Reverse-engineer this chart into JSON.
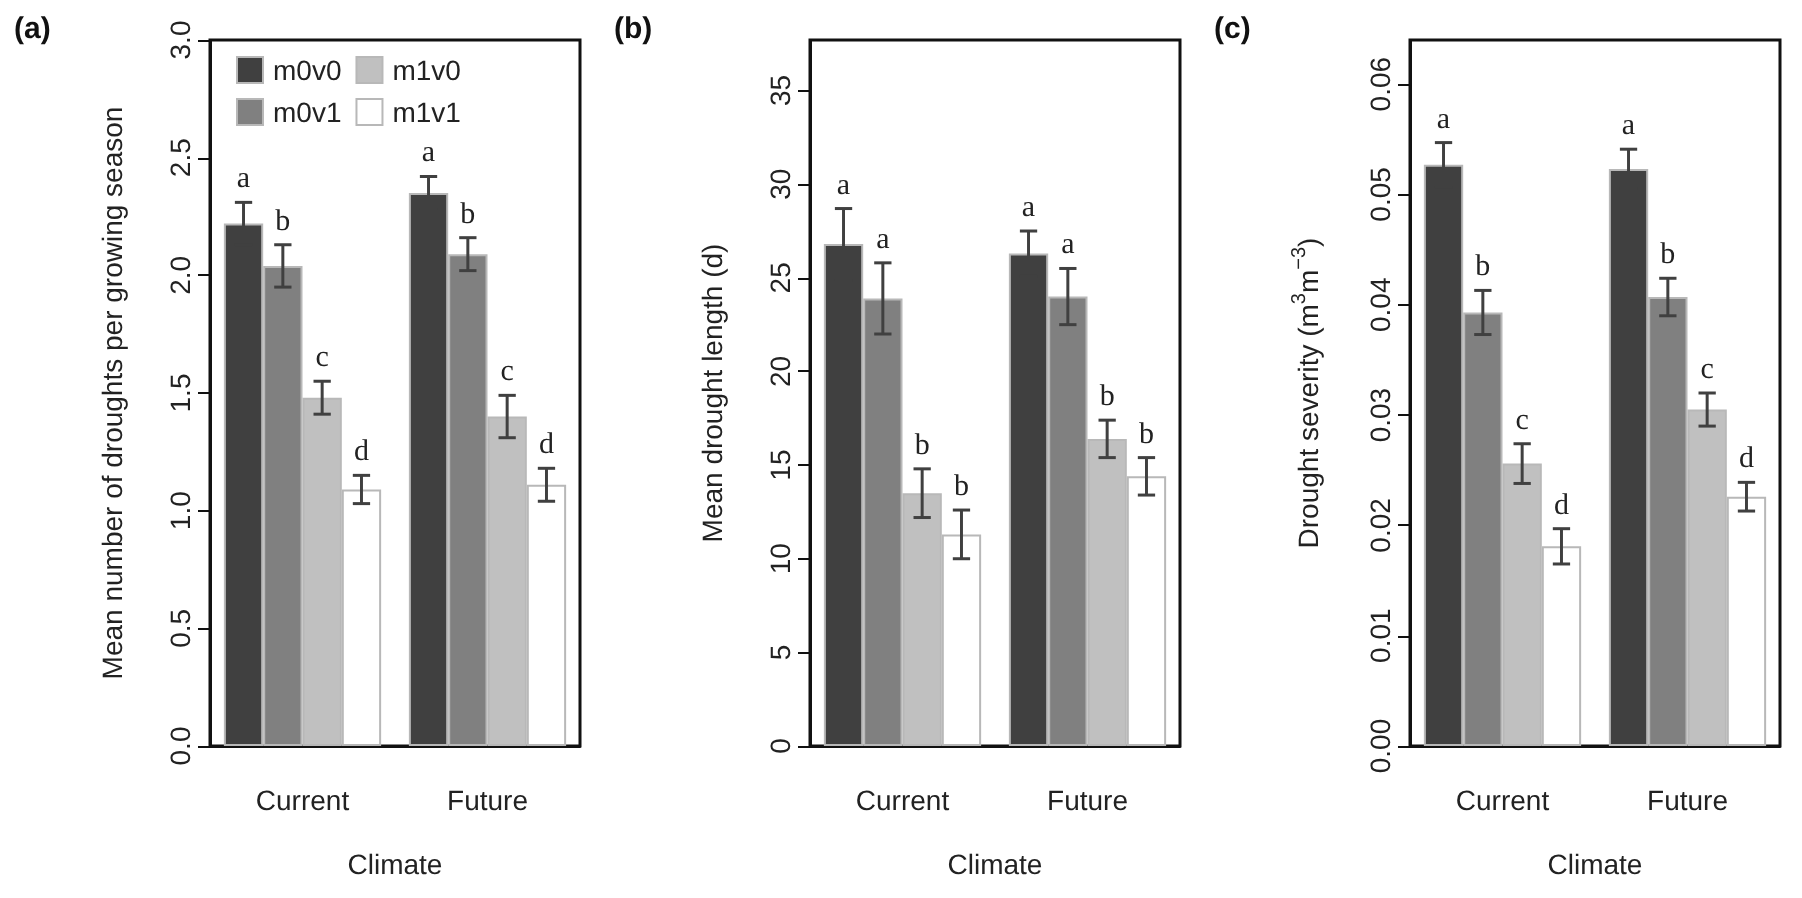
{
  "chart_data": [
    {
      "type": "bar",
      "title": "(a)",
      "xlabel": "Climate",
      "ylabel": "Mean number of droughts per growing season",
      "categories": [
        "Current",
        "Future"
      ],
      "ylim": [
        0,
        3
      ],
      "yticks": [
        {
          "value": 0,
          "label": "0.0"
        },
        {
          "value": 0.5,
          "label": "0.5"
        },
        {
          "value": 1,
          "label": "1.0"
        },
        {
          "value": 1.5,
          "label": "1.5"
        },
        {
          "value": 2,
          "label": "2.0"
        },
        {
          "value": 2.5,
          "label": "2.5"
        },
        {
          "value": 3,
          "label": "3.0"
        }
      ],
      "legend": "top left",
      "series": [
        {
          "name": "m0v0",
          "color": "#404040",
          "values": [
            2.22,
            2.35
          ],
          "errors": [
            0.09,
            0.07
          ],
          "value_labels": [
            "a",
            "a"
          ]
        },
        {
          "name": "m0v1",
          "color": "#808080",
          "values": [
            2.04,
            2.09
          ],
          "errors": [
            0.09,
            0.07
          ],
          "value_labels": [
            "b",
            "b"
          ]
        },
        {
          "name": "m1v0",
          "color": "#c0c0c0",
          "values": [
            1.48,
            1.4
          ],
          "errors": [
            0.07,
            0.09
          ],
          "value_labels": [
            "c",
            "c"
          ]
        },
        {
          "name": "m1v1",
          "color": "#ffffff",
          "values": [
            1.09,
            1.11
          ],
          "errors": [
            0.06,
            0.07
          ],
          "value_labels": [
            "d",
            "d"
          ]
        }
      ]
    },
    {
      "type": "bar",
      "title": "(b)",
      "xlabel": "Climate",
      "ylabel": "Mean drought length (d)",
      "categories": [
        "Current",
        "Future"
      ],
      "ylim": [
        0,
        37.7
      ],
      "yticks": [
        0,
        5,
        10,
        15,
        20,
        25,
        30,
        35
      ],
      "series": [
        {
          "color": "#404040",
          "values": [
            26.8,
            26.3
          ],
          "errors": [
            1.9,
            1.2
          ],
          "value_labels": [
            "a",
            "a"
          ]
        },
        {
          "color": "#808080",
          "values": [
            23.9,
            24.0
          ],
          "errors": [
            1.9,
            1.5
          ],
          "value_labels": [
            "a",
            "a"
          ]
        },
        {
          "color": "#c0c0c0",
          "values": [
            13.5,
            16.4
          ],
          "errors": [
            1.3,
            1.0
          ],
          "value_labels": [
            "b",
            "b"
          ]
        },
        {
          "color": "#ffffff",
          "values": [
            11.3,
            14.4
          ],
          "errors": [
            1.3,
            1.0
          ],
          "value_labels": [
            "b",
            "b"
          ]
        }
      ]
    },
    {
      "type": "bar",
      "title": "(c)",
      "xlabel": "Climate",
      "ylabel": "Drought severity (m$^{3}$m$^{−3}$)",
      "categories": [
        "Current",
        "Future"
      ],
      "ylim": [
        0,
        0.064
      ],
      "yticks": [
        {
          "value": 0,
          "label": "0.00"
        },
        {
          "value": 0.01,
          "label": "0.01"
        },
        {
          "value": 0.02,
          "label": "0.02"
        },
        {
          "value": 0.03,
          "label": "0.03"
        },
        {
          "value": 0.04,
          "label": "0.04"
        },
        {
          "value": 0.05,
          "label": "0.05"
        },
        {
          "value": 0.06,
          "label": "0.06"
        }
      ],
      "series": [
        {
          "color": "#404040",
          "values": [
            0.0527,
            0.0523
          ],
          "errors": [
            0.002,
            0.0018
          ],
          "value_labels": [
            "a",
            "a"
          ]
        },
        {
          "color": "#808080",
          "values": [
            0.0393,
            0.0407
          ],
          "errors": [
            0.002,
            0.0017
          ],
          "value_labels": [
            "b",
            "b"
          ]
        },
        {
          "color": "#c0c0c0",
          "values": [
            0.0256,
            0.0305
          ],
          "errors": [
            0.0018,
            0.0015
          ],
          "value_labels": [
            "c",
            "c"
          ]
        },
        {
          "color": "#ffffff",
          "values": [
            0.0181,
            0.0226
          ],
          "errors": [
            0.0016,
            0.0013
          ],
          "value_labels": [
            "d",
            "d"
          ]
        }
      ]
    }
  ]
}
